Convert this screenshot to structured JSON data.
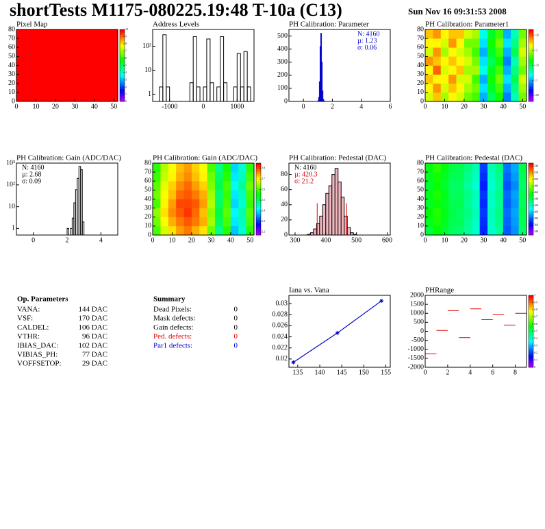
{
  "header": {
    "title": "shortTests M1175-080225.19:48 T-10a (C13)",
    "date": "Sun Nov 16 09:31:53 2008"
  },
  "chart_data": [
    {
      "type": "heatmap",
      "title": "Pixel Map",
      "xlim": [
        0,
        52
      ],
      "ylim": [
        0,
        80
      ],
      "xticks": [
        0,
        10,
        20,
        30,
        40,
        50
      ],
      "yticks": [
        0,
        10,
        20,
        30,
        40,
        50,
        60,
        70,
        80
      ],
      "z": [
        [
          10
        ]
      ],
      "zlim": [
        0,
        10
      ],
      "zticks": [
        0,
        1,
        2,
        3,
        4,
        5,
        6,
        7,
        8,
        9,
        10
      ]
    },
    {
      "type": "histogram",
      "title": "Address Levels",
      "xlim": [
        -1500,
        1500
      ],
      "ylim": [
        0.5,
        500
      ],
      "logy": true,
      "xticks": [
        -1000,
        0,
        1000
      ],
      "yticks": [
        1,
        10,
        {
          "value": 100,
          "label": "10²"
        }
      ],
      "color": "#000000",
      "bins": [
        -1500,
        -1400,
        -1300,
        -1200,
        -1100,
        -1000,
        -900,
        -800,
        -700,
        -600,
        -500,
        -400,
        -300,
        -200,
        -100,
        0,
        100,
        200,
        300,
        400,
        500,
        600,
        700,
        800,
        900,
        1000,
        1100,
        1200,
        1300,
        1400,
        1500
      ],
      "counts": [
        0,
        0,
        2,
        300,
        2,
        0,
        0,
        0,
        0,
        0,
        0,
        3,
        250,
        2,
        0,
        2,
        200,
        3,
        0,
        2,
        250,
        3,
        0,
        0,
        2,
        50,
        2,
        60,
        2,
        0
      ]
    },
    {
      "type": "histogram",
      "title": "PH Calibration: Parameter",
      "xlim": [
        -1,
        6
      ],
      "ylim": [
        0,
        550
      ],
      "xticks": [
        0,
        2,
        4,
        6
      ],
      "yticks": [
        0,
        100,
        200,
        300,
        400,
        500
      ],
      "color": "#0000cc",
      "bins": [
        1.0,
        1.05,
        1.1,
        1.15,
        1.2,
        1.25,
        1.3,
        1.35,
        1.4,
        1.45,
        1.5
      ],
      "counts": [
        5,
        30,
        150,
        420,
        520,
        300,
        80,
        15,
        3,
        1
      ],
      "stats": [
        "N: 4160",
        "µ: 1.23",
        "σ: 0.06"
      ],
      "stats_colors": [
        "#0000cc",
        "#0000cc",
        "#0000cc"
      ],
      "stats_corner": "right"
    },
    {
      "type": "heatmap",
      "title": "PH Calibration: Parameter1",
      "xlim": [
        0,
        52
      ],
      "ylim": [
        0,
        80
      ],
      "xticks": [
        0,
        10,
        20,
        30,
        40,
        50
      ],
      "yticks": [
        0,
        10,
        20,
        30,
        40,
        50,
        60,
        70,
        80
      ],
      "zlim": [
        1.03,
        1.27
      ],
      "zticks": [
        1.05,
        1.1,
        1.15,
        1.2,
        1.25
      ],
      "z": [
        [
          1.21,
          1.23,
          1.2,
          1.22,
          1.21,
          1.19,
          1.18,
          1.1,
          1.15,
          1.17,
          1.09,
          1.13,
          1.19
        ],
        [
          1.22,
          1.24,
          1.21,
          1.23,
          1.22,
          1.2,
          1.19,
          1.11,
          1.16,
          1.18,
          1.1,
          1.14,
          1.2
        ],
        [
          1.23,
          1.22,
          1.22,
          1.24,
          1.21,
          1.21,
          1.18,
          1.1,
          1.17,
          1.19,
          1.11,
          1.15,
          1.21
        ],
        [
          1.22,
          1.25,
          1.21,
          1.22,
          1.23,
          1.2,
          1.2,
          1.12,
          1.16,
          1.18,
          1.1,
          1.14,
          1.19
        ],
        [
          1.24,
          1.23,
          1.22,
          1.23,
          1.22,
          1.21,
          1.19,
          1.11,
          1.15,
          1.17,
          1.09,
          1.13,
          1.2
        ],
        [
          1.21,
          1.24,
          1.2,
          1.22,
          1.21,
          1.2,
          1.18,
          1.1,
          1.16,
          1.18,
          1.1,
          1.15,
          1.21
        ],
        [
          1.22,
          1.22,
          1.21,
          1.24,
          1.22,
          1.19,
          1.19,
          1.11,
          1.17,
          1.19,
          1.11,
          1.14,
          1.2
        ],
        [
          1.23,
          1.24,
          1.22,
          1.23,
          1.23,
          1.21,
          1.2,
          1.12,
          1.16,
          1.18,
          1.1,
          1.13,
          1.19
        ]
      ]
    },
    {
      "type": "histogram",
      "title": "PH Calibration: Gain (ADC/DAC)",
      "xlim": [
        -1,
        5
      ],
      "ylim": [
        0.5,
        1000
      ],
      "logy": true,
      "xticks": [
        0,
        2,
        4
      ],
      "yticks": [
        1,
        10,
        {
          "value": 100,
          "label": "10²"
        },
        {
          "value": 1000,
          "label": "10³"
        }
      ],
      "color": "#000000",
      "bins": [
        2.0,
        2.1,
        2.2,
        2.3,
        2.4,
        2.5,
        2.6,
        2.7,
        2.8,
        2.9,
        3.0
      ],
      "counts": [
        1,
        0,
        1,
        3,
        15,
        60,
        200,
        700,
        500,
        2
      ],
      "stats": [
        "N: 4160",
        "µ: 2.68",
        "σ: 0.09"
      ],
      "stats_colors": [
        "#000000",
        "#000000",
        "#000000"
      ],
      "stats_corner": "left"
    },
    {
      "type": "heatmap",
      "title": "PH Calibration: Gain (ADC/DAC)",
      "xlim": [
        0,
        52
      ],
      "ylim": [
        0,
        80
      ],
      "xticks": [
        0,
        10,
        20,
        30,
        40,
        50
      ],
      "yticks": [
        0,
        10,
        20,
        30,
        40,
        50,
        60,
        70,
        80
      ],
      "zlim": [
        2.17,
        2.85
      ],
      "zticks": [
        2.2,
        2.3,
        2.4,
        2.5,
        2.6,
        2.7,
        2.8
      ],
      "z": [
        [
          2.6,
          2.68,
          2.72,
          2.76,
          2.78,
          2.75,
          2.72,
          2.62,
          2.48,
          2.58,
          2.38,
          2.44,
          2.58
        ],
        [
          2.62,
          2.7,
          2.75,
          2.78,
          2.8,
          2.78,
          2.75,
          2.65,
          2.5,
          2.6,
          2.4,
          2.45,
          2.6
        ],
        [
          2.64,
          2.72,
          2.77,
          2.8,
          2.82,
          2.79,
          2.74,
          2.64,
          2.52,
          2.61,
          2.41,
          2.46,
          2.61
        ],
        [
          2.6,
          2.71,
          2.76,
          2.81,
          2.81,
          2.8,
          2.76,
          2.66,
          2.5,
          2.6,
          2.39,
          2.44,
          2.59
        ],
        [
          2.62,
          2.7,
          2.74,
          2.79,
          2.8,
          2.78,
          2.75,
          2.65,
          2.49,
          2.59,
          2.4,
          2.45,
          2.6
        ],
        [
          2.61,
          2.69,
          2.73,
          2.77,
          2.79,
          2.76,
          2.73,
          2.63,
          2.51,
          2.6,
          2.42,
          2.47,
          2.62
        ],
        [
          2.59,
          2.67,
          2.71,
          2.75,
          2.77,
          2.74,
          2.71,
          2.62,
          2.5,
          2.58,
          2.4,
          2.45,
          2.6
        ],
        [
          2.58,
          2.66,
          2.7,
          2.74,
          2.76,
          2.73,
          2.7,
          2.6,
          2.48,
          2.57,
          2.39,
          2.44,
          2.58
        ]
      ]
    },
    {
      "type": "histogram",
      "title": "PH Calibration: Pedestal (DAC)",
      "xlim": [
        280,
        610
      ],
      "ylim": [
        0,
        95
      ],
      "xticks": [
        300,
        400,
        500,
        600
      ],
      "yticks": [
        0,
        20,
        40,
        60,
        80
      ],
      "color": "#000000",
      "fill_color": "#f2b8c0",
      "bins": [
        340,
        350,
        360,
        370,
        380,
        390,
        400,
        410,
        420,
        430,
        440,
        450,
        460,
        470,
        480,
        490,
        500
      ],
      "counts": [
        1,
        3,
        8,
        15,
        25,
        40,
        55,
        65,
        80,
        88,
        70,
        50,
        25,
        10,
        3,
        1
      ],
      "cut_lines": [
        372,
        468
      ],
      "cut_height": 42,
      "cut_color": "#dd0000",
      "stats": [
        "N: 4160",
        "µ: 420.3",
        "σ: 21.2"
      ],
      "stats_colors": [
        "#000000",
        "#dd0000",
        "#dd0000"
      ],
      "stats_corner": "left"
    },
    {
      "type": "heatmap",
      "title": "PH Calibration: Pedestal (DAC)",
      "xlim": [
        0,
        52
      ],
      "ylim": [
        0,
        80
      ],
      "xticks": [
        0,
        10,
        20,
        30,
        40,
        50
      ],
      "yticks": [
        0,
        10,
        20,
        30,
        40,
        50,
        60,
        70,
        80
      ],
      "zlim": [
        330,
        550
      ],
      "zticks": [
        340,
        360,
        380,
        400,
        420,
        440,
        460,
        480,
        500,
        520,
        540
      ],
      "z": [
        [
          445,
          455,
          448,
          438,
          436,
          428,
          418,
          368,
          418,
          428,
          378,
          388,
          438
        ],
        [
          450,
          460,
          450,
          440,
          440,
          430,
          420,
          370,
          420,
          430,
          380,
          390,
          440
        ],
        [
          455,
          462,
          452,
          442,
          438,
          432,
          422,
          372,
          422,
          432,
          382,
          392,
          442
        ],
        [
          448,
          458,
          449,
          441,
          441,
          429,
          419,
          369,
          419,
          429,
          379,
          389,
          439
        ],
        [
          452,
          461,
          451,
          439,
          439,
          431,
          421,
          371,
          421,
          431,
          381,
          391,
          441
        ],
        [
          447,
          457,
          447,
          437,
          437,
          427,
          417,
          367,
          417,
          427,
          377,
          387,
          437
        ],
        [
          450,
          459,
          450,
          440,
          440,
          430,
          420,
          370,
          420,
          430,
          380,
          390,
          440
        ],
        [
          453,
          463,
          453,
          443,
          441,
          433,
          423,
          373,
          423,
          433,
          383,
          393,
          443
        ]
      ]
    },
    {
      "type": "line",
      "title": "Iana vs. Vana",
      "xlim": [
        133,
        156
      ],
      "ylim": [
        0.0185,
        0.0315
      ],
      "xticks": [
        135,
        140,
        145,
        150,
        155
      ],
      "yticks": [
        0.02,
        0.022,
        0.024,
        0.026,
        0.028,
        0.03
      ],
      "color": "#0000cc",
      "x": [
        134,
        144,
        154
      ],
      "values": [
        0.0194,
        0.0247,
        0.0305
      ]
    },
    {
      "type": "histogram",
      "style": "hline",
      "title": "PHRange",
      "xlim": [
        0,
        9
      ],
      "ylim": [
        -2000,
        2000
      ],
      "xticks": [
        0,
        2,
        4,
        6,
        8
      ],
      "yticks": [
        -2000,
        -1500,
        -1000,
        -500,
        0,
        500,
        1000,
        1500,
        2000
      ],
      "color": "#dd0000",
      "bins": [
        0,
        1,
        2,
        3,
        4,
        5,
        6,
        7,
        8,
        9
      ],
      "counts": [
        -1250,
        50,
        1150,
        -350,
        1250,
        650,
        950,
        350,
        1000
      ],
      "zlim": [
        0,
        1
      ],
      "zticks": [
        0,
        0.1,
        0.2,
        0.3,
        0.4,
        0.5,
        0.6,
        0.7,
        0.8,
        0.9,
        1
      ]
    }
  ],
  "parameters": {
    "title": "Op. Parameters",
    "rows": [
      [
        "VANA:",
        "144 DAC"
      ],
      [
        "VSF:",
        "170 DAC"
      ],
      [
        "CALDEL:",
        "106 DAC"
      ],
      [
        "VTHR:",
        "96 DAC"
      ],
      [
        "IBIAS_DAC:",
        "102 DAC"
      ],
      [
        "VIBIAS_PH:",
        "77 DAC"
      ],
      [
        "VOFFSETOP:",
        "29 DAC"
      ]
    ]
  },
  "summary": {
    "title": "Summary",
    "rows": [
      [
        "Dead Pixels:",
        "0"
      ],
      [
        "Mask defects:",
        "0"
      ],
      [
        "Gain defects:",
        "0"
      ],
      [
        "Ped. defects:",
        "0"
      ],
      [
        "Par1 defects:",
        "0"
      ]
    ],
    "colors": [
      "#000000",
      "#000000",
      "#000000",
      "#dd0000",
      "#0000cc"
    ]
  }
}
